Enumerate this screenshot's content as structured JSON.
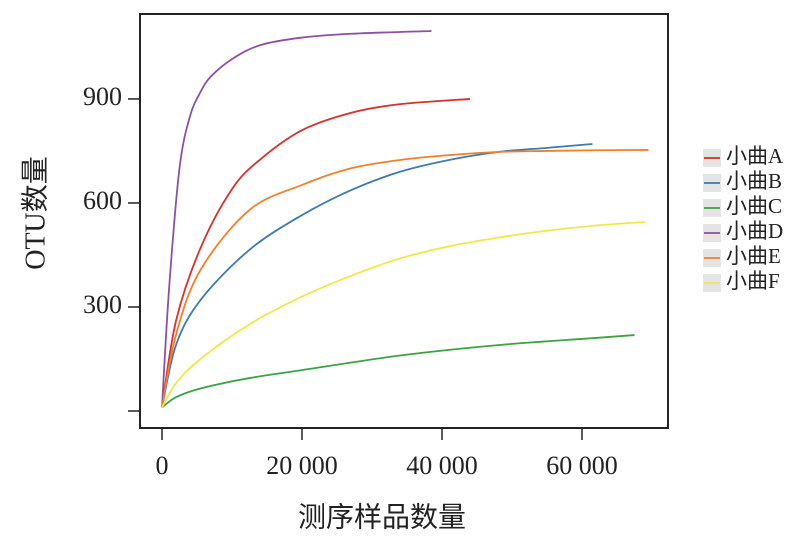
{
  "chart_data": {
    "type": "line",
    "ylabel": "OTU数量",
    "xlabel": "测序样品数量",
    "xlim": [
      -3143,
      72286
    ],
    "ylim": [
      -49,
      1145
    ],
    "xticks": [
      0,
      {
        "value": 20000,
        "label": "20 000"
      },
      {
        "value": 40000,
        "label": "40 000"
      },
      {
        "value": 60000,
        "label": "60 000"
      }
    ],
    "yticks": [
      {
        "value": 0,
        "label": null
      },
      300,
      600,
      900
    ],
    "legend": "right",
    "series": [
      {
        "name": "小曲A",
        "color": "#d7312b",
        "x": [
          0,
          2000,
          5500,
          10000,
          14000,
          20000,
          27000,
          34000,
          44000
        ],
        "values": [
          10,
          260,
          470,
          640,
          725,
          810,
          860,
          885,
          900
        ]
      },
      {
        "name": "小曲B",
        "color": "#3c7ab5",
        "x": [
          0,
          2000,
          5500,
          12500,
          20000,
          27000,
          34000,
          41000,
          48000,
          55000,
          61500
        ],
        "values": [
          10,
          190,
          320,
          465,
          565,
          637,
          690,
          724,
          747,
          759,
          770
        ]
      },
      {
        "name": "小曲C",
        "color": "#3ca245",
        "x": [
          0,
          2000,
          5500,
          12500,
          20000,
          34000,
          48000,
          61500,
          67500
        ],
        "values": [
          10,
          40,
          65,
          95,
          118,
          160,
          190,
          210,
          219
        ]
      },
      {
        "name": "小曲D",
        "color": "#8e4fa8",
        "x": [
          0,
          1000,
          2500,
          4000,
          5500,
          7000,
          10000,
          14000,
          20000,
          27000,
          38500
        ],
        "values": [
          10,
          350,
          700,
          850,
          920,
          965,
          1015,
          1055,
          1077,
          1088,
          1096
        ]
      },
      {
        "name": "小曲E",
        "color": "#f47f2a",
        "x": [
          0,
          2000,
          5500,
          12500,
          20000,
          27000,
          34000,
          41000,
          48000,
          55000,
          62000,
          69500
        ],
        "values": [
          10,
          220,
          407,
          580,
          652,
          700,
          724,
          738,
          747,
          750,
          752,
          753
        ]
      },
      {
        "name": "小曲F",
        "color": "#efe84a",
        "x": [
          0,
          2000,
          5500,
          12500,
          20000,
          27000,
          34000,
          41000,
          48000,
          55000,
          62000,
          69000
        ],
        "values": [
          10,
          80,
          150,
          250,
          330,
          390,
          440,
          475,
          500,
          520,
          535,
          545
        ]
      }
    ]
  }
}
